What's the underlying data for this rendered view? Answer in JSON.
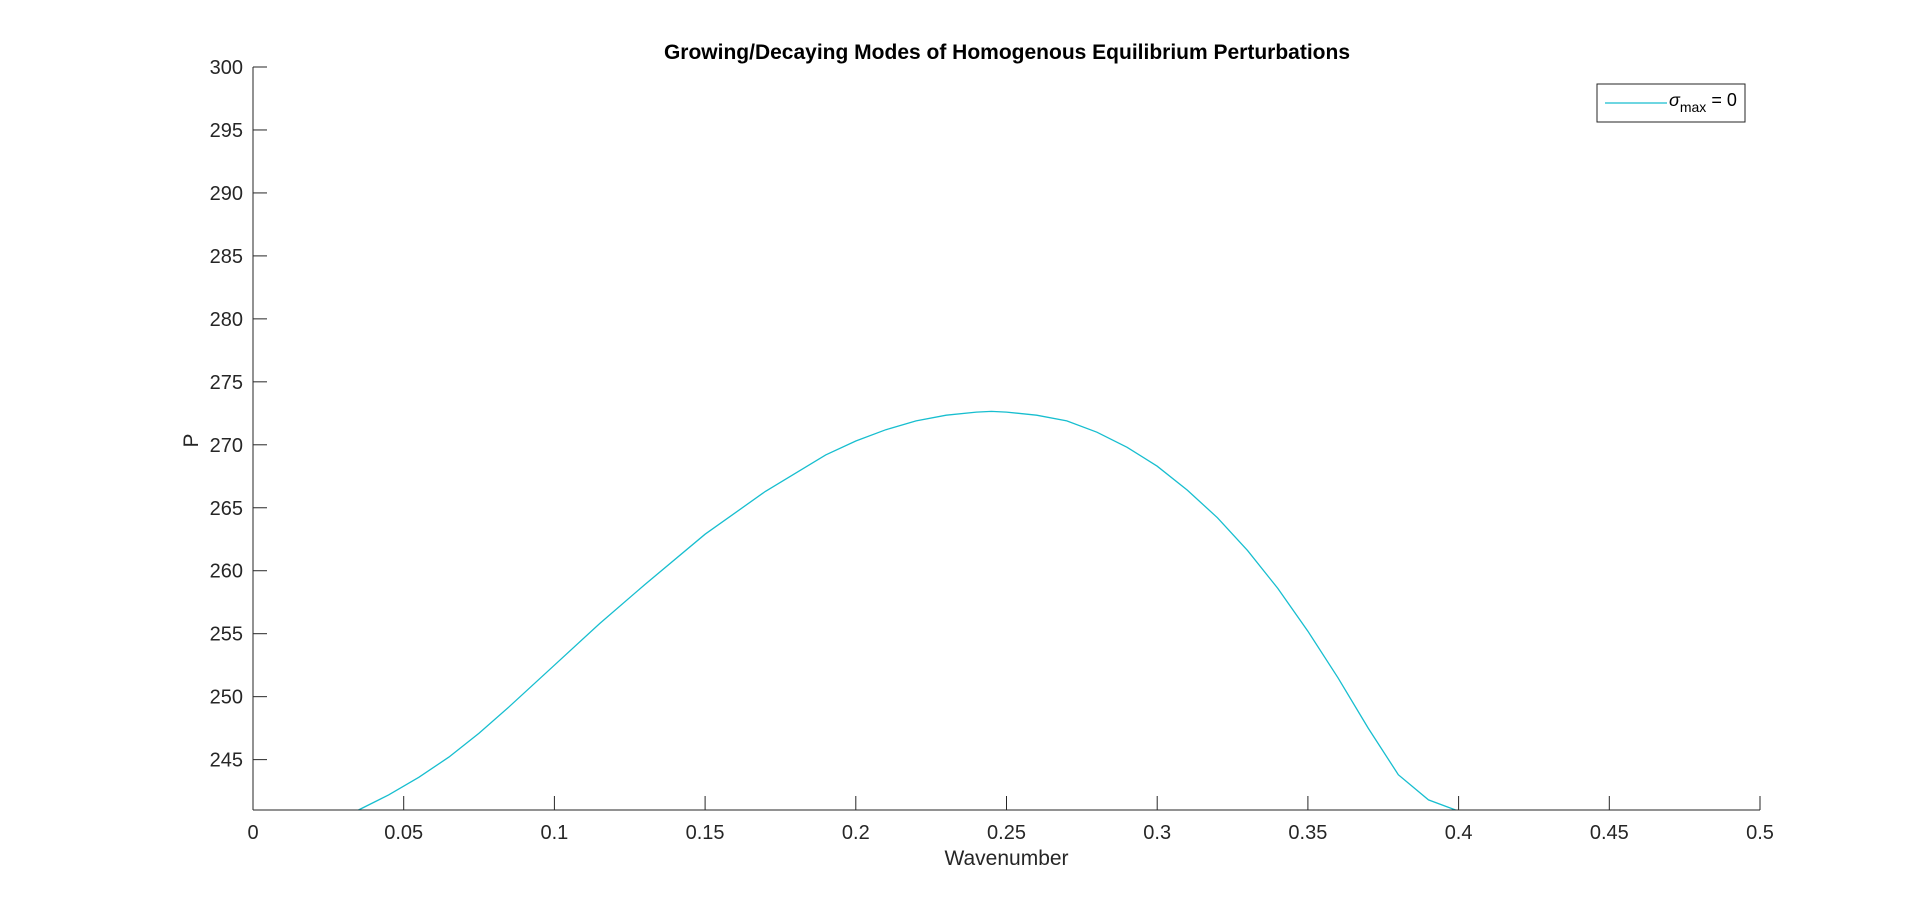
{
  "chart_data": {
    "type": "line",
    "title": "Growing/Decaying Modes of Homogenous Equilibrium Perturbations",
    "xlabel": "Wavenumber",
    "ylabel": "P",
    "xlim": [
      0,
      0.5
    ],
    "ylim": [
      241,
      300
    ],
    "xticks": [
      0,
      0.05,
      0.1,
      0.15,
      0.2,
      0.25,
      0.3,
      0.35,
      0.4,
      0.45,
      0.5
    ],
    "xtick_labels": [
      "0",
      "0.05",
      "0.1",
      "0.15",
      "0.2",
      "0.25",
      "0.3",
      "0.35",
      "0.4",
      "0.45",
      "0.5"
    ],
    "yticks": [
      245,
      250,
      255,
      260,
      265,
      270,
      275,
      280,
      285,
      290,
      295,
      300
    ],
    "ytick_labels": [
      "245",
      "250",
      "255",
      "260",
      "265",
      "270",
      "275",
      "280",
      "285",
      "290",
      "295",
      "300"
    ],
    "grid": false,
    "legend_position": "top-right",
    "series": [
      {
        "name": "σmax = 0",
        "color": "#17BECF",
        "x": [
          0.035,
          0.045,
          0.055,
          0.065,
          0.075,
          0.085,
          0.1,
          0.115,
          0.13,
          0.15,
          0.17,
          0.19,
          0.2,
          0.21,
          0.22,
          0.23,
          0.24,
          0.245,
          0.25,
          0.26,
          0.27,
          0.28,
          0.29,
          0.3,
          0.31,
          0.32,
          0.33,
          0.34,
          0.35,
          0.36,
          0.37,
          0.38,
          0.39,
          0.399
        ],
        "y": [
          241,
          242.2,
          243.6,
          245.2,
          247.1,
          249.2,
          252.5,
          255.8,
          258.9,
          262.9,
          266.3,
          269.2,
          270.3,
          271.2,
          271.9,
          272.35,
          272.6,
          272.65,
          272.6,
          272.35,
          271.9,
          271.0,
          269.8,
          268.3,
          266.4,
          264.2,
          261.6,
          258.6,
          255.2,
          251.5,
          247.5,
          243.8,
          241.8,
          241
        ]
      }
    ],
    "legend": {
      "symbol": "σ",
      "subscript": "max",
      "suffix": " = 0"
    }
  }
}
